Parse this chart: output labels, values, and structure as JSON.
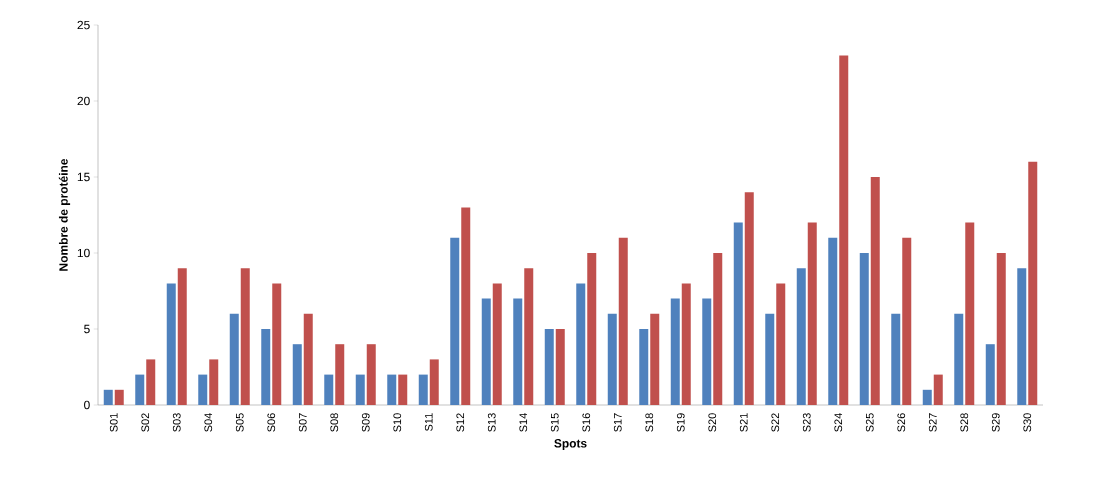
{
  "chart_data": {
    "type": "bar",
    "xlabel": "Spots",
    "ylabel": "Nombre de protéine",
    "categories": [
      "S01",
      "S02",
      "S03",
      "S04",
      "S05",
      "S06",
      "S07",
      "S08",
      "S09",
      "S10",
      "S11",
      "S12",
      "S13",
      "S14",
      "S15",
      "S16",
      "S17",
      "S18",
      "S19",
      "S20",
      "S21",
      "S22",
      "S23",
      "S24",
      "S25",
      "S26",
      "S27",
      "S28",
      "S29",
      "S30"
    ],
    "series": [
      {
        "color": "#4f81bd",
        "values": [
          1,
          2,
          8,
          2,
          6,
          5,
          4,
          2,
          2,
          2,
          2,
          11,
          7,
          7,
          5,
          8,
          6,
          5,
          7,
          7,
          12,
          6,
          9,
          11,
          10,
          6,
          1,
          6,
          4,
          9
        ]
      },
      {
        "color": "#c0504d",
        "values": [
          1,
          3,
          9,
          3,
          9,
          8,
          6,
          4,
          4,
          2,
          3,
          13,
          8,
          9,
          5,
          10,
          11,
          6,
          8,
          10,
          14,
          8,
          12,
          23,
          15,
          11,
          2,
          12,
          10,
          16
        ]
      }
    ],
    "ylim": [
      0,
      25
    ],
    "yticks": [
      0,
      5,
      10,
      15,
      20,
      25
    ]
  }
}
